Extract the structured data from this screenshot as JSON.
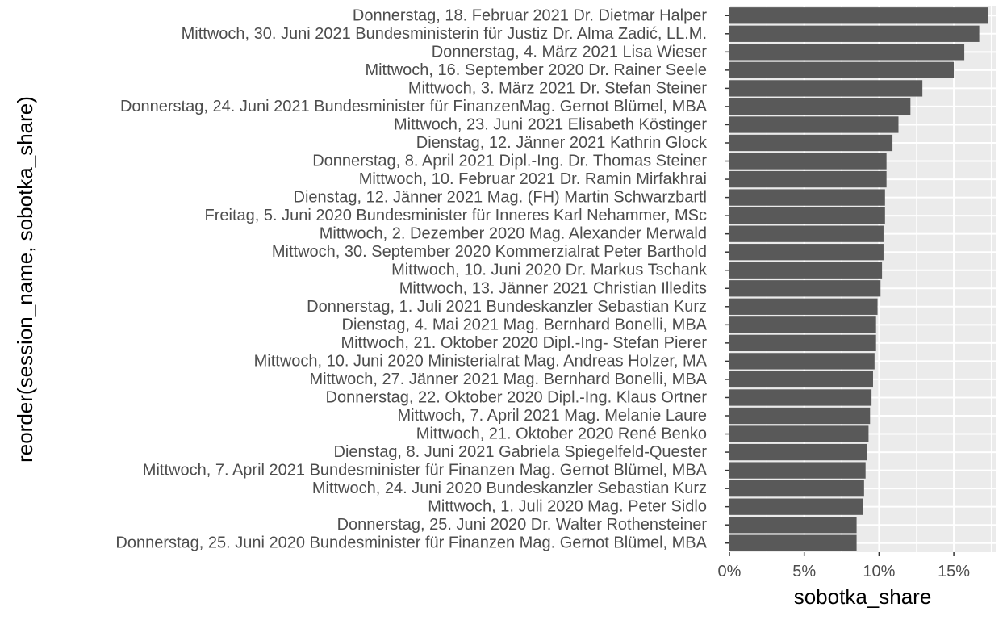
{
  "chart_data": {
    "type": "bar",
    "orientation": "horizontal",
    "title": "",
    "xlabel": "sobotka_share",
    "ylabel": "reorder(session_name, sobotka_share)",
    "xlim": [
      0,
      0.178
    ],
    "x_ticks": [
      0,
      0.05,
      0.1,
      0.15
    ],
    "x_tick_labels": [
      "0%",
      "5%",
      "10%",
      "15%"
    ],
    "grid": true,
    "legend": "none",
    "colors": {
      "bar": "#595959",
      "panel": "#ebebeb",
      "grid": "#ffffff"
    },
    "categories": [
      "Donnerstag, 18. Februar 2021 Dr. Dietmar Halper",
      "Mittwoch, 30. Juni 2021 Bundesministerin für Justiz Dr. Alma Zadić, LL.M.",
      "Donnerstag, 4. März 2021 Lisa Wieser",
      "Mittwoch, 16. September 2020 Dr. Rainer Seele",
      "Mittwoch, 3. März 2021 Dr. Stefan Steiner",
      "Donnerstag, 24. Juni 2021 Bundesminister für FinanzenMag. Gernot Blümel, MBA",
      "Mittwoch, 23. Juni 2021 Elisabeth Köstinger",
      "Dienstag, 12. Jänner 2021 Kathrin Glock",
      "Donnerstag, 8. April 2021 Dipl.-Ing. Dr. Thomas Steiner",
      "Mittwoch, 10. Februar 2021 Dr. Ramin Mirfakhrai",
      "Dienstag, 12. Jänner 2021 Mag. (FH) Martin Schwarzbartl",
      "Freitag, 5. Juni 2020 Bundesminister für Inneres Karl Nehammer, MSc",
      "Mittwoch, 2. Dezember 2020 Mag. Alexander Merwald",
      "Mittwoch, 30. September 2020 Kommerzialrat Peter Barthold",
      "Mittwoch, 10. Juni 2020 Dr. Markus Tschank",
      "Mittwoch, 13. Jänner 2021 Christian Illedits",
      "Donnerstag, 1. Juli 2021 Bundeskanzler Sebastian Kurz",
      "Dienstag, 4. Mai 2021 Mag. Bernhard Bonelli, MBA",
      "Mittwoch, 21. Oktober 2020 Dipl.-Ing- Stefan Pierer",
      "Mittwoch, 10. Juni 2020 Ministerialrat Mag. Andreas Holzer, MA",
      "Mittwoch, 27. Jänner 2021 Mag. Bernhard Bonelli, MBA",
      "Donnerstag, 22. Oktober 2020 Dipl.-Ing. Klaus Ortner",
      "Mittwoch, 7. April 2021 Mag. Melanie Laure",
      "Mittwoch, 21. Oktober 2020 René Benko",
      "Dienstag, 8. Juni 2021 Gabriela Spiegelfeld-Quester",
      "Mittwoch, 7. April 2021 Bundesminister für Finanzen Mag. Gernot Blümel, MBA",
      "Mittwoch, 24. Juni 2020 Bundeskanzler Sebastian Kurz",
      "Mittwoch, 1. Juli 2020 Mag. Peter Sidlo",
      "Donnerstag, 25. Juni 2020 Dr. Walter Rothensteiner",
      "Donnerstag, 25. Juni 2020 Bundesminister für Finanzen Mag. Gernot Blümel, MBA"
    ],
    "values": [
      0.173,
      0.167,
      0.157,
      0.15,
      0.129,
      0.121,
      0.113,
      0.109,
      0.105,
      0.105,
      0.104,
      0.104,
      0.103,
      0.103,
      0.102,
      0.101,
      0.099,
      0.098,
      0.098,
      0.097,
      0.096,
      0.095,
      0.094,
      0.093,
      0.092,
      0.091,
      0.09,
      0.089,
      0.085,
      0.085
    ]
  }
}
